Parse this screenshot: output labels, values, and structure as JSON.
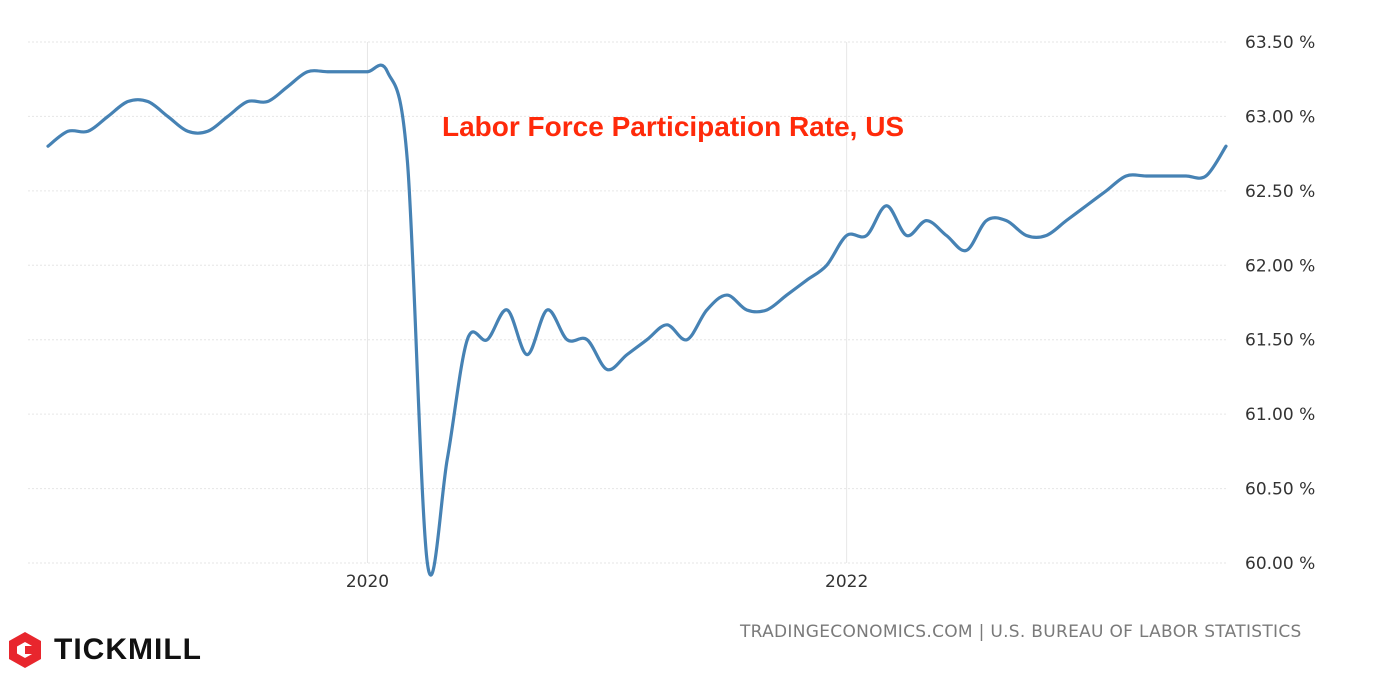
{
  "chart_data": {
    "type": "line",
    "title": "Labor Force Participation Rate, US",
    "x_ticks": [
      "2020",
      "2022"
    ],
    "y_ticks": [
      "63.50 %",
      "63.00 %",
      "62.50 %",
      "62.00 %",
      "61.50 %",
      "61.00 %",
      "60.50 %",
      "60.00 %"
    ],
    "ylim": [
      60.0,
      63.5
    ],
    "xlim": [
      "2018-09",
      "2023-10"
    ],
    "grid": true,
    "series": [
      {
        "color": "#4682b4",
        "x": [
          "2018-09",
          "2018-10",
          "2018-11",
          "2018-12",
          "2019-01",
          "2019-02",
          "2019-03",
          "2019-04",
          "2019-05",
          "2019-06",
          "2019-07",
          "2019-08",
          "2019-09",
          "2019-10",
          "2019-11",
          "2019-12",
          "2020-01",
          "2020-02",
          "2020-03",
          "2020-04",
          "2020-05",
          "2020-06",
          "2020-07",
          "2020-08",
          "2020-09",
          "2020-10",
          "2020-11",
          "2020-12",
          "2021-01",
          "2021-02",
          "2021-03",
          "2021-04",
          "2021-05",
          "2021-06",
          "2021-07",
          "2021-08",
          "2021-09",
          "2021-10",
          "2021-11",
          "2021-12",
          "2022-01",
          "2022-02",
          "2022-03",
          "2022-04",
          "2022-05",
          "2022-06",
          "2022-07",
          "2022-08",
          "2022-09",
          "2022-10",
          "2022-11",
          "2022-12",
          "2023-01",
          "2023-02",
          "2023-03",
          "2023-04",
          "2023-05",
          "2023-06",
          "2023-07",
          "2023-08"
        ],
        "values": [
          62.8,
          62.9,
          62.9,
          63.0,
          63.1,
          63.1,
          63.0,
          62.9,
          62.9,
          63.0,
          63.1,
          63.1,
          63.2,
          63.3,
          63.3,
          63.3,
          63.3,
          63.3,
          62.7,
          60.0,
          60.7,
          61.5,
          61.5,
          61.7,
          61.4,
          61.7,
          61.5,
          61.5,
          61.3,
          61.4,
          61.5,
          61.6,
          61.5,
          61.7,
          61.8,
          61.7,
          61.7,
          61.8,
          61.9,
          62.0,
          62.2,
          62.2,
          62.4,
          62.2,
          62.3,
          62.2,
          62.1,
          62.3,
          62.3,
          62.2,
          62.2,
          62.3,
          62.4,
          62.5,
          62.6,
          62.6,
          62.6,
          62.6,
          62.6,
          62.8
        ]
      }
    ]
  },
  "footer": {
    "source": "TRADINGECONOMICS.COM | U.S. BUREAU OF LABOR STATISTICS",
    "brand": "TICKMILL"
  }
}
